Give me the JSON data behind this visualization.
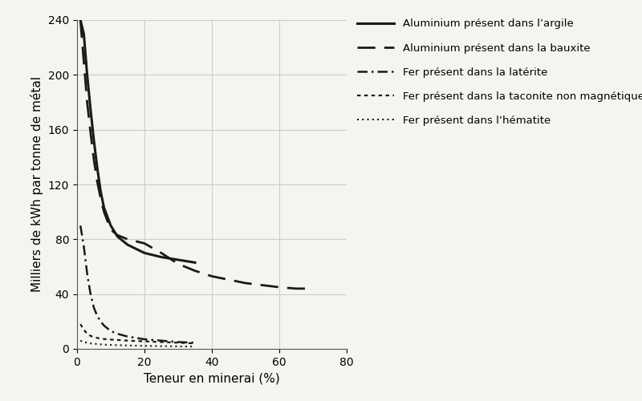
{
  "title": "",
  "xlabel": "Teneur en minerai (%)",
  "ylabel": "Milliers de kWh par tonne de métal",
  "xlim": [
    0,
    80
  ],
  "ylim": [
    0,
    240
  ],
  "xticks": [
    0,
    20,
    40,
    60,
    80
  ],
  "yticks": [
    0,
    40,
    80,
    120,
    160,
    200,
    240
  ],
  "background_color": "#f5f5f0",
  "grid_color": "#cccccc",
  "series": [
    {
      "label": "Aluminium présent dans l’argile",
      "linestyle": "solid",
      "linewidth": 2.2,
      "color": "#1a1a1a",
      "x": [
        1,
        2,
        3,
        4,
        5,
        6,
        7,
        8,
        10,
        12,
        15,
        20,
        25,
        30,
        35
      ],
      "y": [
        240,
        230,
        200,
        175,
        152,
        132,
        115,
        103,
        90,
        82,
        76,
        70,
        67,
        65,
        63
      ]
    },
    {
      "label": "Aluminium présent dans la bauxite",
      "linestyle": "longdash",
      "linewidth": 2.0,
      "color": "#1a1a1a",
      "x": [
        1,
        2,
        3,
        4,
        5,
        6,
        7,
        8,
        10,
        12,
        15,
        20,
        25,
        30,
        35,
        40,
        50,
        60,
        65,
        70
      ],
      "y": [
        240,
        210,
        180,
        158,
        138,
        122,
        110,
        100,
        87,
        83,
        80,
        77,
        70,
        62,
        57,
        53,
        48,
        45,
        44,
        44
      ]
    },
    {
      "label": "Fer présent dans la latérite",
      "linestyle": "dashdot",
      "linewidth": 1.8,
      "color": "#1a1a1a",
      "x": [
        1,
        2,
        3,
        4,
        5,
        6,
        7,
        8,
        10,
        12,
        15,
        20,
        25,
        30,
        35
      ],
      "y": [
        90,
        75,
        55,
        40,
        30,
        24,
        20,
        17,
        13,
        11,
        9,
        7,
        6,
        5,
        4.5
      ]
    },
    {
      "label": "Fer présent dans la taconite non magnétique",
      "linestyle": "densedot",
      "linewidth": 1.6,
      "color": "#1a1a1a",
      "x": [
        1,
        2,
        3,
        4,
        5,
        6,
        7,
        8,
        10,
        12,
        15,
        20,
        25,
        30,
        35
      ],
      "y": [
        18,
        14,
        11,
        9.5,
        8.5,
        8,
        7.5,
        7.2,
        6.8,
        6.5,
        6,
        5.5,
        5,
        4.5,
        4
      ]
    },
    {
      "label": "Fer présent dans l’hématite",
      "linestyle": "dotted",
      "linewidth": 1.5,
      "color": "#1a1a1a",
      "x": [
        1,
        2,
        3,
        4,
        5,
        6,
        7,
        8,
        10,
        12,
        15,
        20,
        25,
        30,
        35
      ],
      "y": [
        6,
        5,
        4.5,
        4,
        3.8,
        3.5,
        3.3,
        3.1,
        2.9,
        2.7,
        2.5,
        2.2,
        2,
        1.8,
        1.7
      ]
    }
  ],
  "legend_entries": [
    {
      "label": "Aluminium présent dans l’argile",
      "linestyle": "solid",
      "linewidth": 2.2
    },
    {
      "label": "Aluminium présent dans la bauxite",
      "linestyle": "longdash",
      "linewidth": 2.0
    },
    {
      "label": "Fer présent dans la latérite",
      "linestyle": "dashdot",
      "linewidth": 1.8
    },
    {
      "label": "Fer présent dans la taconite non magnétique",
      "linestyle": "densedot",
      "linewidth": 1.6
    },
    {
      "label": "Fer présent dans l’hématite",
      "linestyle": "dotted",
      "linewidth": 1.5
    }
  ]
}
